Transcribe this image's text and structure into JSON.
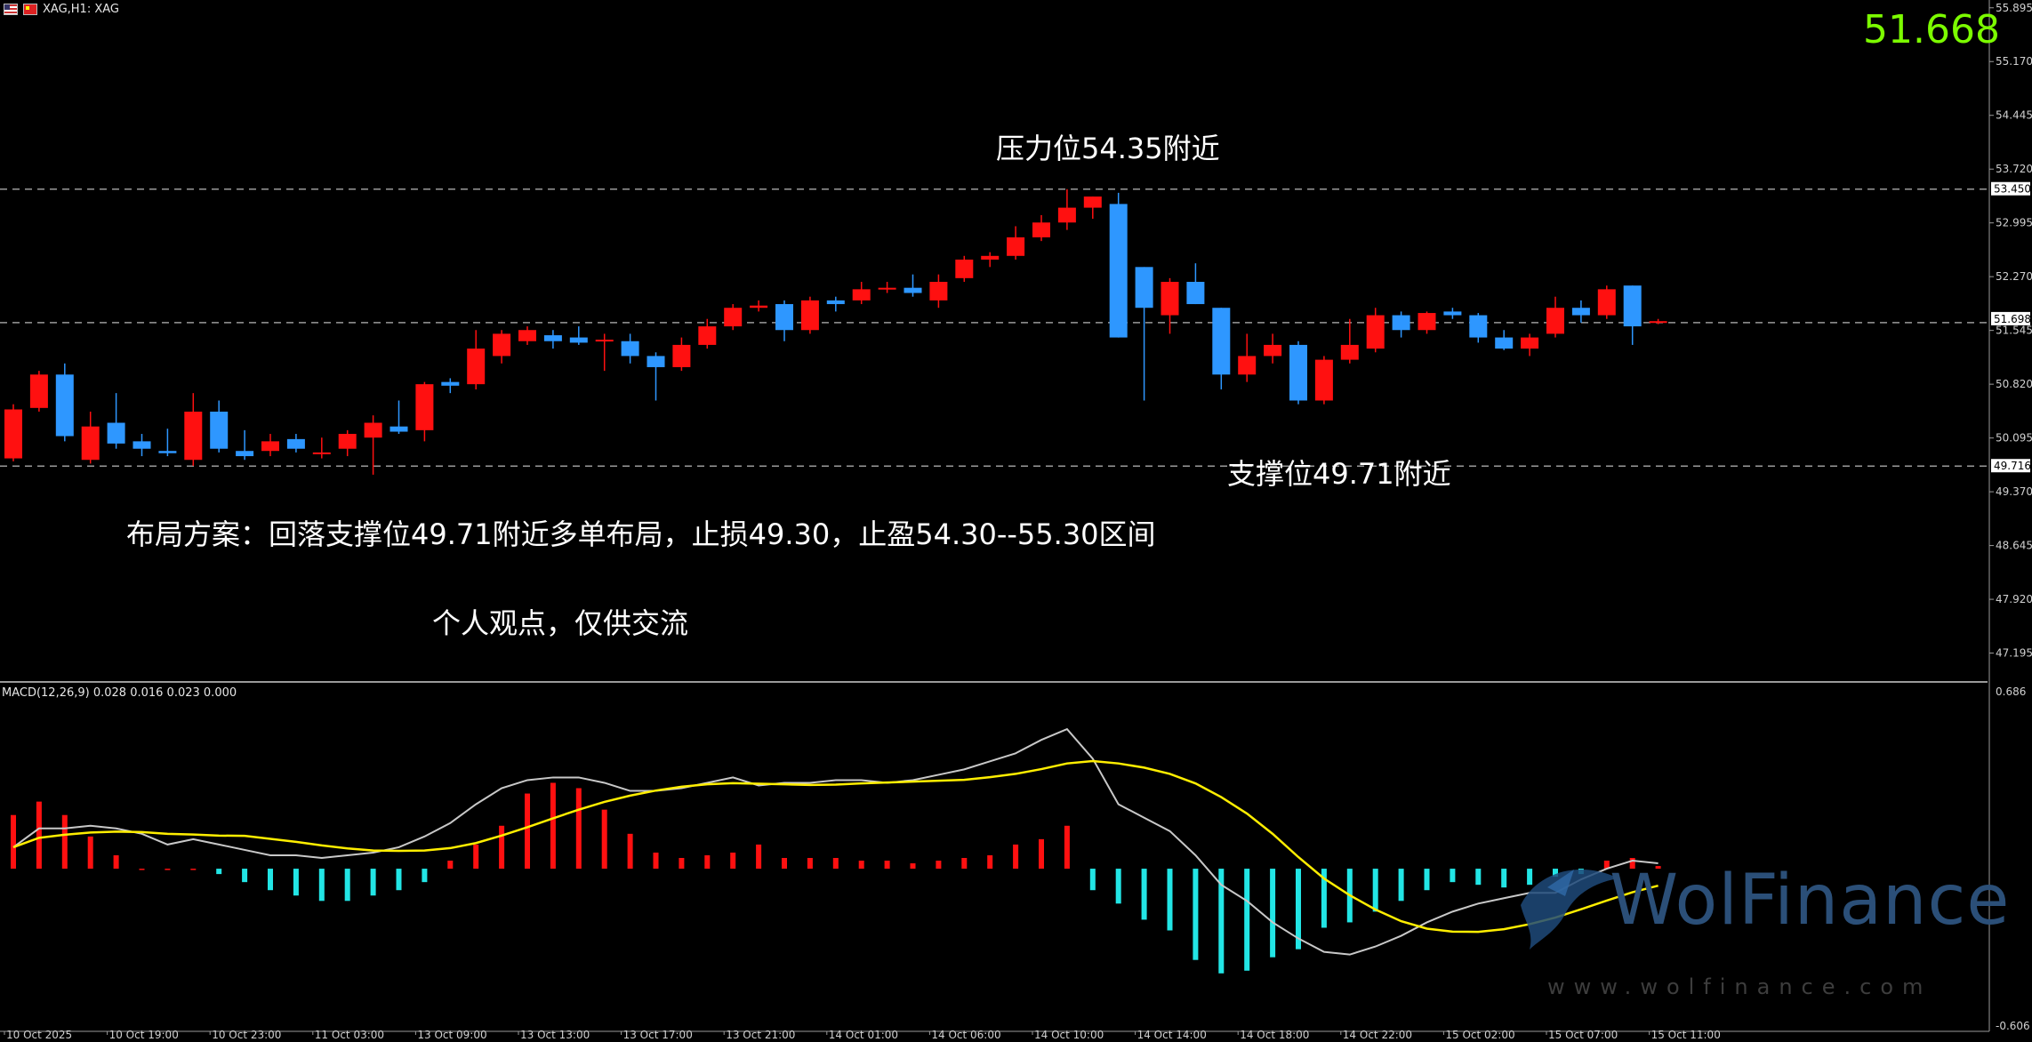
{
  "header": {
    "symbol_label": "XAG,H1: XAG",
    "last_price": "51.668"
  },
  "annotations": {
    "resistance": "压力位54.35附近",
    "support": "支撑位49.71附近",
    "plan": "布局方案：回落支撑位49.71附近多单布局，止损49.30，止盈54.30--55.30区间",
    "disclaimer": "个人观点，仅供交流"
  },
  "indicator": {
    "label": "MACD(12,26,9) 0.028 0.016 0.023 0.000"
  },
  "watermark": {
    "brand": "WolFinance",
    "url": "www.wolfinance.com"
  },
  "colors": {
    "background": "#000000",
    "bull": "#ff1010",
    "bear": "#2e97ff",
    "hist_pos": "#ff1010",
    "hist_neg": "#22e5e5",
    "macd_line": "#c8c8c8",
    "signal_line": "#ffee00",
    "grid_dash": "#9a9a9a",
    "last_price": "#7CFC00"
  },
  "chart_data": [
    {
      "type": "candlestick",
      "title": "",
      "ylim": [
        46.83,
        56.0
      ],
      "yticks": [
        "55.895",
        "55.170",
        "54.445",
        "53.720",
        "52.995",
        "52.270",
        "51.545",
        "50.820",
        "50.095",
        "49.370",
        "48.645",
        "47.920",
        "47.195"
      ],
      "price_labels": [
        {
          "value": 53.45,
          "label": "53.450"
        },
        {
          "value": 51.698,
          "label": "51.698"
        },
        {
          "value": 49.716,
          "label": "49.716"
        }
      ],
      "horizontal_levels": [
        53.45,
        51.65,
        49.716
      ],
      "x_ticks": [
        {
          "index": 0,
          "label": "10 Oct 2025"
        },
        {
          "index": 4,
          "label": "10 Oct 19:00"
        },
        {
          "index": 8,
          "label": "10 Oct 23:00"
        },
        {
          "index": 12,
          "label": "11 Oct 03:00"
        },
        {
          "index": 16,
          "label": "13 Oct 09:00"
        },
        {
          "index": 20,
          "label": "13 Oct 13:00"
        },
        {
          "index": 24,
          "label": "13 Oct 17:00"
        },
        {
          "index": 28,
          "label": "13 Oct 21:00"
        },
        {
          "index": 32,
          "label": "14 Oct 01:00"
        },
        {
          "index": 36,
          "label": "14 Oct 06:00"
        },
        {
          "index": 40,
          "label": "14 Oct 10:00"
        },
        {
          "index": 44,
          "label": "14 Oct 14:00"
        },
        {
          "index": 48,
          "label": "14 Oct 18:00"
        },
        {
          "index": 52,
          "label": "14 Oct 22:00"
        },
        {
          "index": 56,
          "label": "15 Oct 02:00"
        },
        {
          "index": 60,
          "label": "15 Oct 07:00"
        },
        {
          "index": 64,
          "label": "15 Oct 11:00"
        }
      ],
      "candles": [
        {
          "o": 49.82,
          "h": 50.55,
          "l": 49.78,
          "c": 50.48
        },
        {
          "o": 50.5,
          "h": 51.0,
          "l": 50.45,
          "c": 50.95
        },
        {
          "o": 50.95,
          "h": 51.1,
          "l": 50.05,
          "c": 50.12
        },
        {
          "o": 49.8,
          "h": 50.45,
          "l": 49.75,
          "c": 50.25
        },
        {
          "o": 50.3,
          "h": 50.7,
          "l": 49.95,
          "c": 50.02
        },
        {
          "o": 50.05,
          "h": 50.15,
          "l": 49.85,
          "c": 49.95
        },
        {
          "o": 49.92,
          "h": 50.22,
          "l": 49.85,
          "c": 49.89
        },
        {
          "o": 49.8,
          "h": 50.7,
          "l": 49.72,
          "c": 50.45
        },
        {
          "o": 50.45,
          "h": 50.6,
          "l": 49.9,
          "c": 49.95
        },
        {
          "o": 49.92,
          "h": 50.2,
          "l": 49.8,
          "c": 49.85
        },
        {
          "o": 49.92,
          "h": 50.15,
          "l": 49.85,
          "c": 50.05
        },
        {
          "o": 50.08,
          "h": 50.15,
          "l": 49.9,
          "c": 49.95
        },
        {
          "o": 49.88,
          "h": 50.1,
          "l": 49.82,
          "c": 49.9
        },
        {
          "o": 49.95,
          "h": 50.2,
          "l": 49.85,
          "c": 50.15
        },
        {
          "o": 50.1,
          "h": 50.4,
          "l": 49.6,
          "c": 50.3
        },
        {
          "o": 50.25,
          "h": 50.6,
          "l": 50.15,
          "c": 50.18
        },
        {
          "o": 50.2,
          "h": 50.85,
          "l": 50.05,
          "c": 50.82
        },
        {
          "o": 50.85,
          "h": 50.9,
          "l": 50.7,
          "c": 50.8
        },
        {
          "o": 50.82,
          "h": 51.55,
          "l": 50.75,
          "c": 51.3
        },
        {
          "o": 51.2,
          "h": 51.55,
          "l": 51.1,
          "c": 51.5
        },
        {
          "o": 51.4,
          "h": 51.6,
          "l": 51.35,
          "c": 51.55
        },
        {
          "o": 51.48,
          "h": 51.55,
          "l": 51.3,
          "c": 51.4
        },
        {
          "o": 51.45,
          "h": 51.6,
          "l": 51.35,
          "c": 51.38
        },
        {
          "o": 51.4,
          "h": 51.5,
          "l": 51.0,
          "c": 51.42
        },
        {
          "o": 51.4,
          "h": 51.5,
          "l": 51.1,
          "c": 51.2
        },
        {
          "o": 51.2,
          "h": 51.25,
          "l": 50.6,
          "c": 51.05
        },
        {
          "o": 51.05,
          "h": 51.45,
          "l": 51.0,
          "c": 51.35
        },
        {
          "o": 51.35,
          "h": 51.7,
          "l": 51.3,
          "c": 51.6
        },
        {
          "o": 51.6,
          "h": 51.9,
          "l": 51.55,
          "c": 51.85
        },
        {
          "o": 51.85,
          "h": 51.95,
          "l": 51.8,
          "c": 51.88
        },
        {
          "o": 51.9,
          "h": 51.95,
          "l": 51.4,
          "c": 51.55
        },
        {
          "o": 51.55,
          "h": 52.0,
          "l": 51.5,
          "c": 51.95
        },
        {
          "o": 51.95,
          "h": 52.0,
          "l": 51.8,
          "c": 51.9
        },
        {
          "o": 51.95,
          "h": 52.2,
          "l": 51.9,
          "c": 52.1
        },
        {
          "o": 52.1,
          "h": 52.2,
          "l": 52.05,
          "c": 52.12
        },
        {
          "o": 52.12,
          "h": 52.3,
          "l": 52.0,
          "c": 52.05
        },
        {
          "o": 51.95,
          "h": 52.3,
          "l": 51.85,
          "c": 52.2
        },
        {
          "o": 52.25,
          "h": 52.55,
          "l": 52.2,
          "c": 52.5
        },
        {
          "o": 52.5,
          "h": 52.6,
          "l": 52.4,
          "c": 52.55
        },
        {
          "o": 52.55,
          "h": 52.95,
          "l": 52.5,
          "c": 52.8
        },
        {
          "o": 52.8,
          "h": 53.1,
          "l": 52.75,
          "c": 53.0
        },
        {
          "o": 53.0,
          "h": 53.45,
          "l": 52.9,
          "c": 53.2
        },
        {
          "o": 53.2,
          "h": 53.35,
          "l": 53.05,
          "c": 53.35
        },
        {
          "o": 53.25,
          "h": 53.4,
          "l": 51.45,
          "c": 51.45
        },
        {
          "o": 52.4,
          "h": 52.4,
          "l": 50.6,
          "c": 51.85
        },
        {
          "o": 51.75,
          "h": 52.25,
          "l": 51.5,
          "c": 52.2
        },
        {
          "o": 52.2,
          "h": 52.45,
          "l": 51.9,
          "c": 51.9
        },
        {
          "o": 51.85,
          "h": 51.85,
          "l": 50.75,
          "c": 50.95
        },
        {
          "o": 50.95,
          "h": 51.5,
          "l": 50.85,
          "c": 51.2
        },
        {
          "o": 51.2,
          "h": 51.5,
          "l": 51.1,
          "c": 51.35
        },
        {
          "o": 51.35,
          "h": 51.4,
          "l": 50.55,
          "c": 50.6
        },
        {
          "o": 50.6,
          "h": 51.2,
          "l": 50.55,
          "c": 51.15
        },
        {
          "o": 51.15,
          "h": 51.7,
          "l": 51.1,
          "c": 51.35
        },
        {
          "o": 51.3,
          "h": 51.85,
          "l": 51.25,
          "c": 51.75
        },
        {
          "o": 51.75,
          "h": 51.8,
          "l": 51.45,
          "c": 51.55
        },
        {
          "o": 51.55,
          "h": 51.8,
          "l": 51.5,
          "c": 51.78
        },
        {
          "o": 51.8,
          "h": 51.85,
          "l": 51.7,
          "c": 51.75
        },
        {
          "o": 51.75,
          "h": 51.78,
          "l": 51.38,
          "c": 51.45
        },
        {
          "o": 51.45,
          "h": 51.55,
          "l": 51.28,
          "c": 51.3
        },
        {
          "o": 51.3,
          "h": 51.5,
          "l": 51.2,
          "c": 51.45
        },
        {
          "o": 51.5,
          "h": 52.0,
          "l": 51.45,
          "c": 51.85
        },
        {
          "o": 51.85,
          "h": 51.95,
          "l": 51.65,
          "c": 51.75
        },
        {
          "o": 51.75,
          "h": 52.15,
          "l": 51.7,
          "c": 52.1
        },
        {
          "o": 52.15,
          "h": 52.15,
          "l": 51.35,
          "c": 51.6
        },
        {
          "o": 51.65,
          "h": 51.7,
          "l": 51.63,
          "c": 51.67
        }
      ]
    },
    {
      "type": "macd",
      "title": "",
      "params": [
        12,
        26,
        9
      ],
      "ylim": [
        -0.606,
        0.686
      ],
      "yticks": [
        "0.686",
        "-0.606"
      ],
      "histogram": [
        0.2,
        0.25,
        0.2,
        0.12,
        0.05,
        0.0,
        0.0,
        0.0,
        -0.02,
        -0.05,
        -0.08,
        -0.1,
        -0.12,
        -0.12,
        -0.1,
        -0.08,
        -0.05,
        0.03,
        0.09,
        0.16,
        0.28,
        0.32,
        0.3,
        0.22,
        0.13,
        0.06,
        0.04,
        0.05,
        0.06,
        0.09,
        0.04,
        0.04,
        0.04,
        0.03,
        0.03,
        0.02,
        0.03,
        0.04,
        0.05,
        0.09,
        0.11,
        0.16,
        -0.08,
        -0.13,
        -0.19,
        -0.23,
        -0.34,
        -0.39,
        -0.38,
        -0.33,
        -0.3,
        -0.22,
        -0.2,
        -0.16,
        -0.12,
        -0.08,
        -0.05,
        -0.06,
        -0.07,
        -0.06,
        -0.03,
        -0.02,
        0.03,
        0.04,
        0.01
      ],
      "macd_line": [
        0.08,
        0.15,
        0.15,
        0.16,
        0.15,
        0.13,
        0.09,
        0.11,
        0.09,
        0.07,
        0.05,
        0.05,
        0.04,
        0.05,
        0.06,
        0.08,
        0.12,
        0.17,
        0.24,
        0.3,
        0.33,
        0.34,
        0.34,
        0.32,
        0.29,
        0.29,
        0.3,
        0.32,
        0.34,
        0.31,
        0.32,
        0.32,
        0.33,
        0.33,
        0.32,
        0.33,
        0.35,
        0.37,
        0.4,
        0.43,
        0.48,
        0.52,
        0.41,
        0.24,
        0.19,
        0.14,
        0.05,
        -0.06,
        -0.12,
        -0.2,
        -0.26,
        -0.31,
        -0.32,
        -0.29,
        -0.25,
        -0.2,
        -0.16,
        -0.13,
        -0.11,
        -0.09,
        -0.09,
        -0.04,
        0.0,
        0.03,
        0.02
      ]
    }
  ]
}
